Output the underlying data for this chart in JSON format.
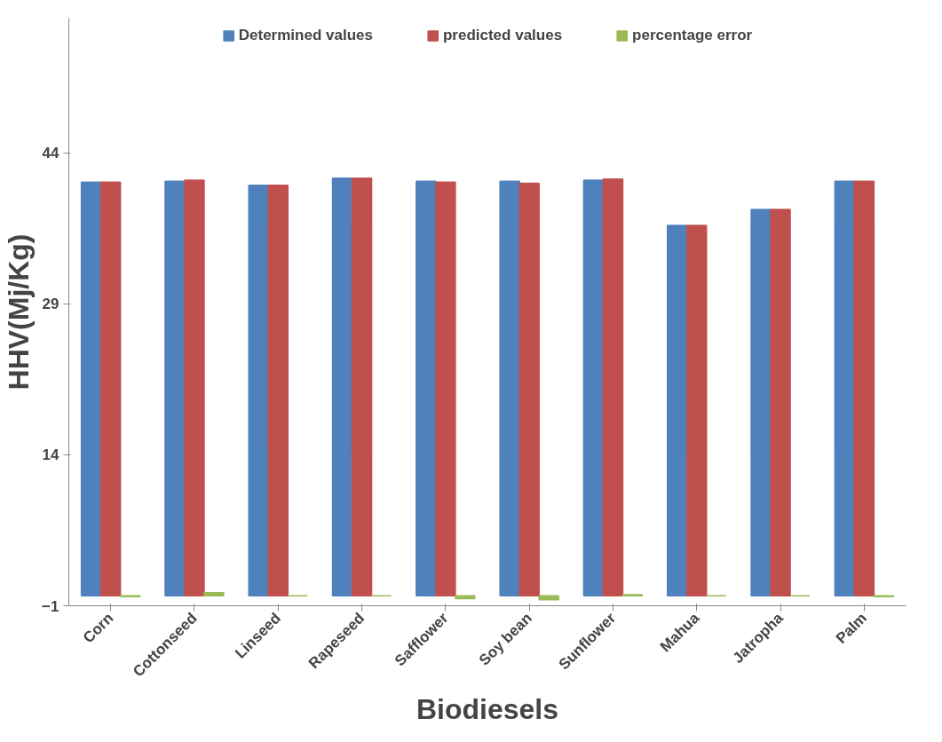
{
  "chart_data": {
    "type": "bar",
    "xlabel": "Biodiesels",
    "ylabel": "HHV(Mj/Kg)",
    "categories": [
      "Corn",
      "Cottonseed",
      "Linseed",
      "Rapeseed",
      "Safflower",
      "Soy bean",
      "Sunflower",
      "Mahua",
      "Jatropha",
      "Palm"
    ],
    "series": [
      {
        "name": "Determined values",
        "color": "#4f81bd",
        "values": [
          41.1,
          41.2,
          40.8,
          41.5,
          41.2,
          41.2,
          41.3,
          36.8,
          38.4,
          41.2
        ]
      },
      {
        "name": "predicted values",
        "color": "#c0504d",
        "values": [
          41.1,
          41.3,
          40.8,
          41.5,
          41.1,
          41.0,
          41.4,
          36.8,
          38.4,
          41.2
        ]
      },
      {
        "name": "percentage error",
        "color": "#9bbb59",
        "values": [
          -0.1,
          0.3,
          0,
          0,
          -0.3,
          -0.4,
          0.1,
          0,
          0,
          -0.1
        ]
      }
    ],
    "ylim": [
      -1,
      57.4
    ],
    "yticks": [
      -1,
      14,
      29,
      44
    ],
    "grid": false,
    "legend": "top"
  }
}
